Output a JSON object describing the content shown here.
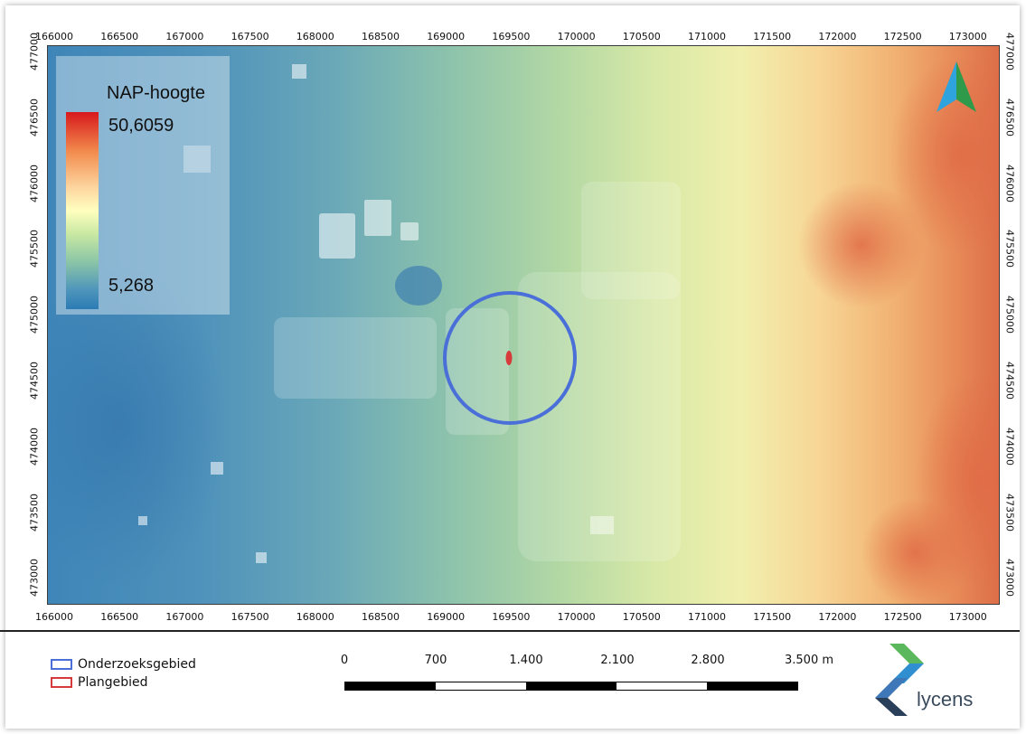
{
  "map": {
    "x_ticks": [
      "166000",
      "166500",
      "167000",
      "167500",
      "168000",
      "168500",
      "169000",
      "169500",
      "170000",
      "170500",
      "171000",
      "171500",
      "172000",
      "172500",
      "173000"
    ],
    "y_ticks": [
      "477000",
      "476500",
      "476000",
      "475500",
      "475000",
      "474500",
      "474000",
      "473500",
      "473000"
    ],
    "legend": {
      "title": "NAP-hoogte",
      "max_value": "50,6059",
      "min_value": "5,268"
    },
    "layers": [
      {
        "name": "Onderzoeksgebied",
        "color": "#4a6fd8"
      },
      {
        "name": "Plangebied",
        "color": "#d63a3a"
      }
    ],
    "scale_bar": {
      "labels": [
        "0",
        "700",
        "1.400",
        "2.100",
        "2.800",
        "3.500 m"
      ]
    },
    "logo_text": "lycens",
    "colors": {
      "low": "#2b7bb4",
      "high": "#d7191c",
      "circle": "#4a6fd8",
      "plan": "#d63a3a"
    }
  }
}
